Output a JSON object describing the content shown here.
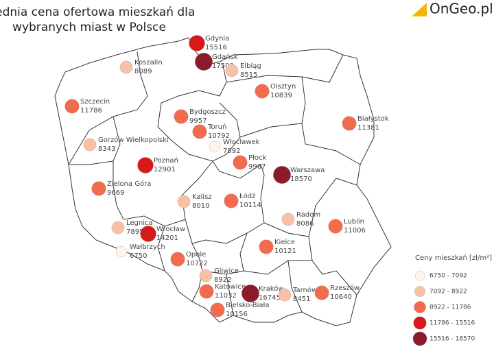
{
  "title": [
    "Średnia cena ofertowa mieszkań dla",
    "wybranych miast w Polsce"
  ],
  "logo": "OnGeo.pl",
  "cities": [
    {
      "name": "Gdynia",
      "value": 15516
    },
    {
      "name": "Gdańsk",
      "value": 17500
    },
    {
      "name": "Koszalin",
      "value": 8089
    },
    {
      "name": "Elbląg",
      "value": 8515
    },
    {
      "name": "Olsztyn",
      "value": 10839
    },
    {
      "name": "Szczecin",
      "value": 11786
    },
    {
      "name": "Bydgoszcz",
      "value": 9957
    },
    {
      "name": "Toruń",
      "value": 10792
    },
    {
      "name": "Białystok",
      "value": 11381
    },
    {
      "name": "Gorzów Wielkopolski",
      "value": 8343
    },
    {
      "name": "Włocławek",
      "value": 7092
    },
    {
      "name": "Płock",
      "value": 9967
    },
    {
      "name": "Poznań",
      "value": 12901
    },
    {
      "name": "Warszawa",
      "value": 18570
    },
    {
      "name": "Zielona Góra",
      "value": 9669
    },
    {
      "name": "Kalisz",
      "value": 8010
    },
    {
      "name": "Łódź",
      "value": 10114
    },
    {
      "name": "Radom",
      "value": 8086
    },
    {
      "name": "Lublin",
      "value": 11006
    },
    {
      "name": "Legnica",
      "value": 7895
    },
    {
      "name": "Wrocław",
      "value": 14201
    },
    {
      "name": "Wałbrzych",
      "value": 6750
    },
    {
      "name": "Kielce",
      "value": 10121
    },
    {
      "name": "Opole",
      "value": 10722
    },
    {
      "name": "Gliwice",
      "value": 8922
    },
    {
      "name": "Katowice",
      "value": 11032
    },
    {
      "name": "Kraków",
      "value": 16745
    },
    {
      "name": "Tarnów",
      "value": 8451
    },
    {
      "name": "Rzeszów",
      "value": 10640
    },
    {
      "name": "Bielsko-Biała",
      "value": 10156
    }
  ],
  "legend": {
    "title": "Ceny mieszkań [zł/m²]",
    "classes": [
      {
        "range": [
          6750,
          7092
        ],
        "label": "6750 - 7092",
        "color": "#fdf5ee"
      },
      {
        "range": [
          7092,
          8922
        ],
        "label": "7092 - 8922",
        "color": "#f8c0a4"
      },
      {
        "range": [
          8922,
          11786
        ],
        "label": "8922 - 11786",
        "color": "#f26b4d"
      },
      {
        "range": [
          11786,
          15516
        ],
        "label": "11786 - 15516",
        "color": "#d7191c"
      },
      {
        "range": [
          15516,
          18570
        ],
        "label": "15516 - 18570",
        "color": "#8b1a2a"
      }
    ]
  }
}
